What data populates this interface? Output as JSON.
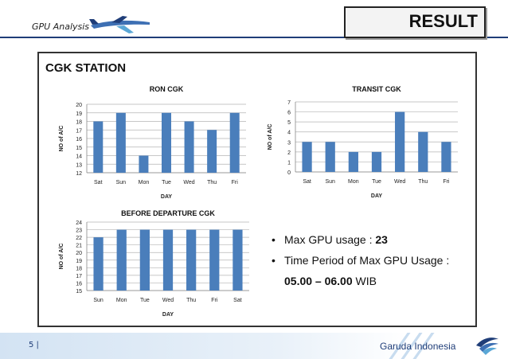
{
  "header": {
    "section": "GPU Analysis",
    "result_label": "RESULT"
  },
  "panel": {
    "title": "CGK STATION"
  },
  "summary": {
    "max_usage_label": "Max GPU usage : ",
    "max_usage_value": "23",
    "period_label": "Time Period of Max GPU Usage :",
    "period_value": "05.00 – 06.00",
    "period_unit": " WIB"
  },
  "footer": {
    "page": "5 |",
    "brand": "Garuda Indonesia"
  },
  "colors": {
    "bar": "#4a7ebb",
    "navy": "#1f3d78"
  },
  "chart_data": [
    {
      "type": "bar",
      "title": "RON CGK",
      "xlabel": "DAY",
      "ylabel": "NO of A/C",
      "categories": [
        "Sat",
        "Sun",
        "Mon",
        "Tue",
        "Wed",
        "Thu",
        "Fri"
      ],
      "values": [
        18,
        19,
        14,
        19,
        18,
        17,
        19
      ],
      "ylim": [
        12,
        20
      ],
      "yticks": [
        12,
        13,
        14,
        15,
        16,
        17,
        18,
        19,
        20
      ],
      "grid": true
    },
    {
      "type": "bar",
      "title": "TRANSIT CGK",
      "xlabel": "DAY",
      "ylabel": "NO of A/C",
      "categories": [
        "Sat",
        "Sun",
        "Mon",
        "Tue",
        "Wed",
        "Thu",
        "Fri"
      ],
      "values": [
        3,
        3,
        2,
        2,
        6,
        4,
        3
      ],
      "ylim": [
        0,
        7
      ],
      "yticks": [
        0,
        1,
        2,
        3,
        4,
        5,
        6,
        7
      ],
      "grid": true
    },
    {
      "type": "bar",
      "title": "BEFORE DEPARTURE CGK",
      "xlabel": "DAY",
      "ylabel": "NO of A/C",
      "categories": [
        "Sun",
        "Mon",
        "Tue",
        "Wed",
        "Thu",
        "Fri",
        "Sat"
      ],
      "values": [
        22,
        23,
        23,
        23,
        23,
        23,
        23
      ],
      "ylim": [
        15,
        24
      ],
      "yticks": [
        15,
        16,
        17,
        18,
        19,
        20,
        21,
        22,
        23,
        24
      ],
      "grid": true
    }
  ]
}
